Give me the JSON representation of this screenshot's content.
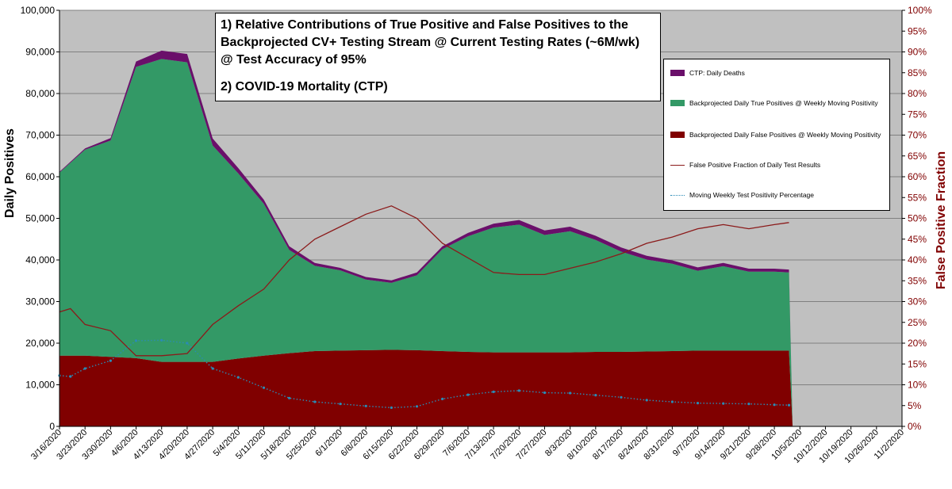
{
  "colors": {
    "plot_bg": "#c0c0c0",
    "grid": "#808080",
    "true_positives": "#339966",
    "false_positives": "#800000",
    "deaths": "#6a0f6a",
    "fp_fraction_line": "#8b1a1a",
    "positivity_line": "#2a8bb5",
    "right_axis_text": "#800000"
  },
  "title": {
    "line1": "1) Relative Contributions of True Positive and False Positives to the",
    "line2": "Backprojected CV+ Testing Stream @ Current Testing Rates (~6M/wk)",
    "line3": "@ Test Accuracy of 95%",
    "line4": "2) COVID-19 Mortality (CTP)"
  },
  "legend": {
    "deaths": "CTP: Daily Deaths",
    "true_positives": "Backprojected Daily True Positives @ Weekly Moving Positivity",
    "false_positives": "Backprojected Daily False Positives @ Weekly Moving Positivity",
    "fp_fraction": "False Positive Fraction of Daily Test Results",
    "positivity": "Moving Weekly Test Positivity Percentage"
  },
  "chart_data": {
    "type": "area",
    "ylabel": "Daily Positives",
    "y2label": "False Positive Fraction",
    "ylim": [
      0,
      100000
    ],
    "y2lim": [
      0,
      100
    ],
    "y_ticks": [
      "0",
      "10,000",
      "20,000",
      "30,000",
      "40,000",
      "50,000",
      "60,000",
      "70,000",
      "80,000",
      "90,000",
      "100,000"
    ],
    "y2_ticks": [
      "0%",
      "5%",
      "10%",
      "15%",
      "20%",
      "25%",
      "30%",
      "35%",
      "40%",
      "45%",
      "50%",
      "55%",
      "60%",
      "65%",
      "70%",
      "75%",
      "80%",
      "85%",
      "90%",
      "95%",
      "100%"
    ],
    "x_ticks": [
      "3/16/2020",
      "3/23/2020",
      "3/30/2020",
      "4/6/2020",
      "4/13/2020",
      "4/20/2020",
      "4/27/2020",
      "5/4/2020",
      "5/11/2020",
      "5/18/2020",
      "5/25/2020",
      "6/1/2020",
      "6/8/2020",
      "6/15/2020",
      "6/22/2020",
      "6/29/2020",
      "7/6/2020",
      "7/13/2020",
      "7/20/2020",
      "7/27/2020",
      "8/3/2020",
      "8/10/2020",
      "8/17/2020",
      "8/24/2020",
      "8/31/2020",
      "9/7/2020",
      "9/14/2020",
      "9/21/2020",
      "9/28/2020",
      "10/5/2020",
      "10/12/2020",
      "10/19/2020",
      "10/26/2020",
      "11/2/2020"
    ],
    "grid": true,
    "legend_position": "right",
    "series": [
      {
        "name": "Backprojected Daily False Positives @ Weekly Moving Positivity",
        "kind": "stacked-area",
        "x": [
          0,
          7,
          14,
          21,
          28,
          35,
          42,
          49,
          56,
          63,
          70,
          77,
          84,
          91,
          98,
          105,
          112,
          119,
          126,
          133,
          140,
          147,
          154,
          161,
          168,
          175,
          182,
          189,
          196,
          200,
          201
        ],
        "values": [
          17000,
          17000,
          16700,
          16400,
          15500,
          15500,
          15500,
          16300,
          17000,
          17600,
          18100,
          18200,
          18300,
          18400,
          18300,
          18100,
          17900,
          17800,
          17800,
          17800,
          17800,
          17900,
          17900,
          18000,
          18100,
          18200,
          18200,
          18200,
          18200,
          18200,
          0
        ]
      },
      {
        "name": "Backprojected Daily True Positives @ Weekly Moving Positivity",
        "kind": "stacked-area",
        "x": [
          0,
          7,
          14,
          21,
          28,
          35,
          42,
          49,
          56,
          63,
          70,
          77,
          84,
          91,
          98,
          105,
          112,
          119,
          126,
          133,
          140,
          147,
          154,
          161,
          168,
          175,
          182,
          189,
          196,
          200,
          201
        ],
        "values": [
          44000,
          49500,
          52000,
          70000,
          72800,
          72000,
          52000,
          44500,
          36500,
          24800,
          20500,
          19300,
          17000,
          16100,
          18000,
          24500,
          27800,
          30000,
          30700,
          28200,
          29100,
          26900,
          24100,
          22100,
          21000,
          19200,
          20300,
          19000,
          19000,
          18800,
          0
        ]
      },
      {
        "name": "CTP: Daily Deaths",
        "kind": "stacked-area",
        "x": [
          0,
          7,
          14,
          21,
          28,
          35,
          42,
          49,
          56,
          63,
          70,
          77,
          84,
          91,
          98,
          105,
          112,
          119,
          126,
          133,
          140,
          147,
          154,
          161,
          168,
          175,
          182,
          189,
          196,
          200,
          201
        ],
        "values": [
          200,
          300,
          600,
          1300,
          2000,
          2000,
          1700,
          1300,
          1000,
          900,
          700,
          600,
          600,
          600,
          700,
          700,
          800,
          900,
          1100,
          1100,
          1100,
          1000,
          1000,
          900,
          800,
          800,
          800,
          700,
          700,
          700,
          0
        ]
      },
      {
        "name": "False Positive Fraction of Daily Test Results",
        "kind": "line",
        "axis": "right",
        "x": [
          0,
          3,
          7,
          14,
          21,
          28,
          35,
          42,
          49,
          56,
          63,
          70,
          77,
          84,
          91,
          98,
          105,
          112,
          119,
          126,
          133,
          140,
          147,
          154,
          161,
          168,
          175,
          182,
          189,
          196,
          200
        ],
        "values": [
          27.5,
          28.3,
          24.5,
          23,
          17,
          17,
          17.5,
          24.5,
          29,
          33,
          40,
          45,
          48,
          51,
          53,
          50,
          44,
          40.5,
          37,
          36.5,
          36.5,
          38,
          39.5,
          41.5,
          44,
          45.5,
          47.5,
          48.5,
          47.5,
          48.5,
          49
        ]
      },
      {
        "name": "Moving Weekly Test Positivity Percentage",
        "kind": "line-markers",
        "axis": "right",
        "x": [
          0,
          3,
          7,
          14,
          21,
          28,
          35,
          42,
          49,
          56,
          63,
          70,
          77,
          84,
          91,
          98,
          105,
          112,
          119,
          126,
          133,
          140,
          147,
          154,
          161,
          168,
          175,
          182,
          189,
          196,
          200
        ],
        "values": [
          12.2,
          12,
          13.9,
          15.8,
          20.6,
          20.7,
          20,
          13.9,
          11.8,
          9.3,
          6.8,
          5.9,
          5.4,
          4.9,
          4.5,
          4.8,
          6.6,
          7.6,
          8.3,
          8.6,
          8.1,
          8,
          7.5,
          7,
          6.3,
          5.9,
          5.6,
          5.5,
          5.4,
          5.2,
          5.1
        ]
      }
    ]
  }
}
